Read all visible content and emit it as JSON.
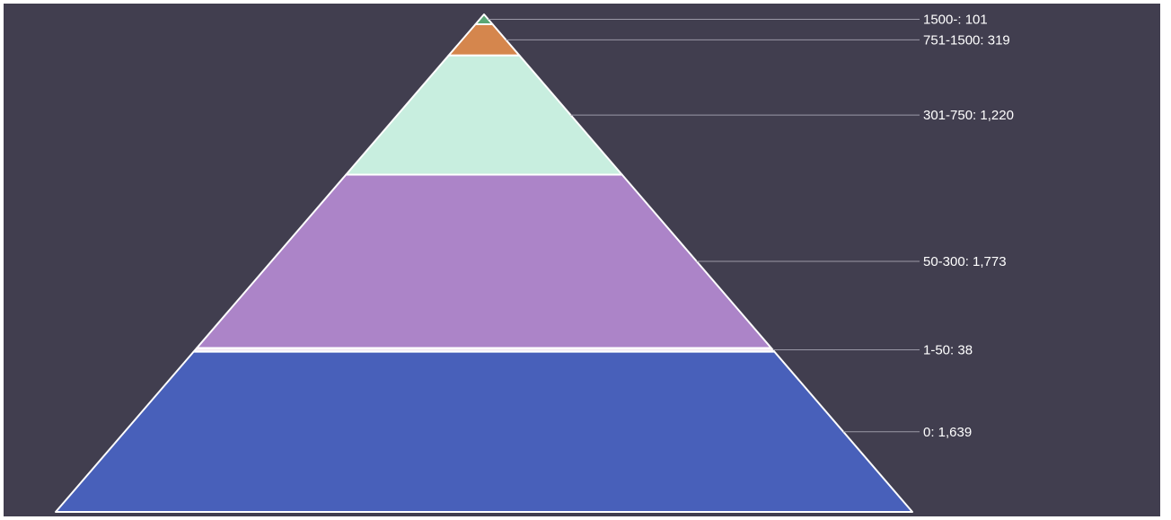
{
  "chart_data": {
    "type": "pyramid",
    "title": "",
    "segments": [
      {
        "category": "1500-",
        "value": 101,
        "label": "1500-: 101",
        "color": "#5aa775"
      },
      {
        "category": "751-1500",
        "value": 319,
        "label": "751-1500: 319",
        "color": "#d5864d"
      },
      {
        "category": "301-750",
        "value": 1220,
        "label": "301-750: 1,220",
        "color": "#c8eedf"
      },
      {
        "category": "50-300",
        "value": 1773,
        "label": "50-300: 1,773",
        "color": "#ac84c8"
      },
      {
        "category": "1-50",
        "value": 38,
        "label": "1-50: 38",
        "color": "#f4eaf3"
      },
      {
        "category": "0",
        "value": 1639,
        "label": "0: 1,639",
        "color": "#4860ba"
      }
    ],
    "colors": {
      "background": "#413e4f",
      "outline": "#ffffff",
      "leader_line": "#9a98a6",
      "label_text": "#ffffff"
    },
    "legend": "none"
  }
}
